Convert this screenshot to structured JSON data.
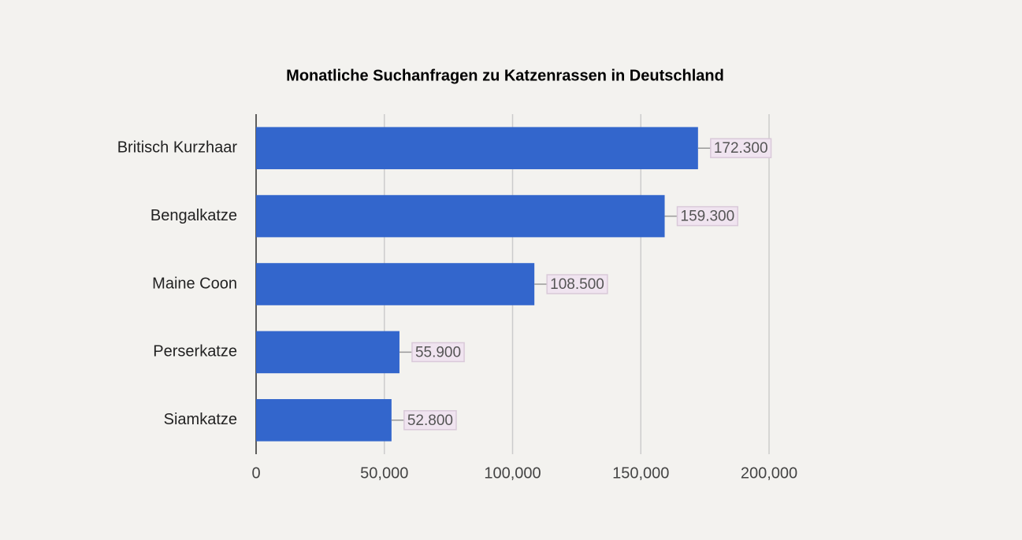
{
  "chart_data": {
    "type": "bar",
    "orientation": "horizontal",
    "title": "Monatliche Suchanfragen zu Katzenrassen in Deutschland",
    "categories": [
      "Britisch Kurzhaar",
      "Bengalkatze",
      "Maine Coon",
      "Perserkatze",
      "Siamkatze"
    ],
    "values": [
      172300,
      159300,
      108500,
      55900,
      52800
    ],
    "value_labels": [
      "172.300",
      "159.300",
      "108.500",
      "55.900",
      "52.800"
    ],
    "color": "#3366cc",
    "xlim": [
      0,
      200000
    ],
    "xticks": [
      0,
      {
        "value": 50000,
        "label": "50,000"
      },
      {
        "value": 100000,
        "label": "100,000"
      },
      {
        "value": 150000,
        "label": "150,000"
      },
      {
        "value": 200000,
        "label": "200,000"
      }
    ],
    "grid": true
  }
}
